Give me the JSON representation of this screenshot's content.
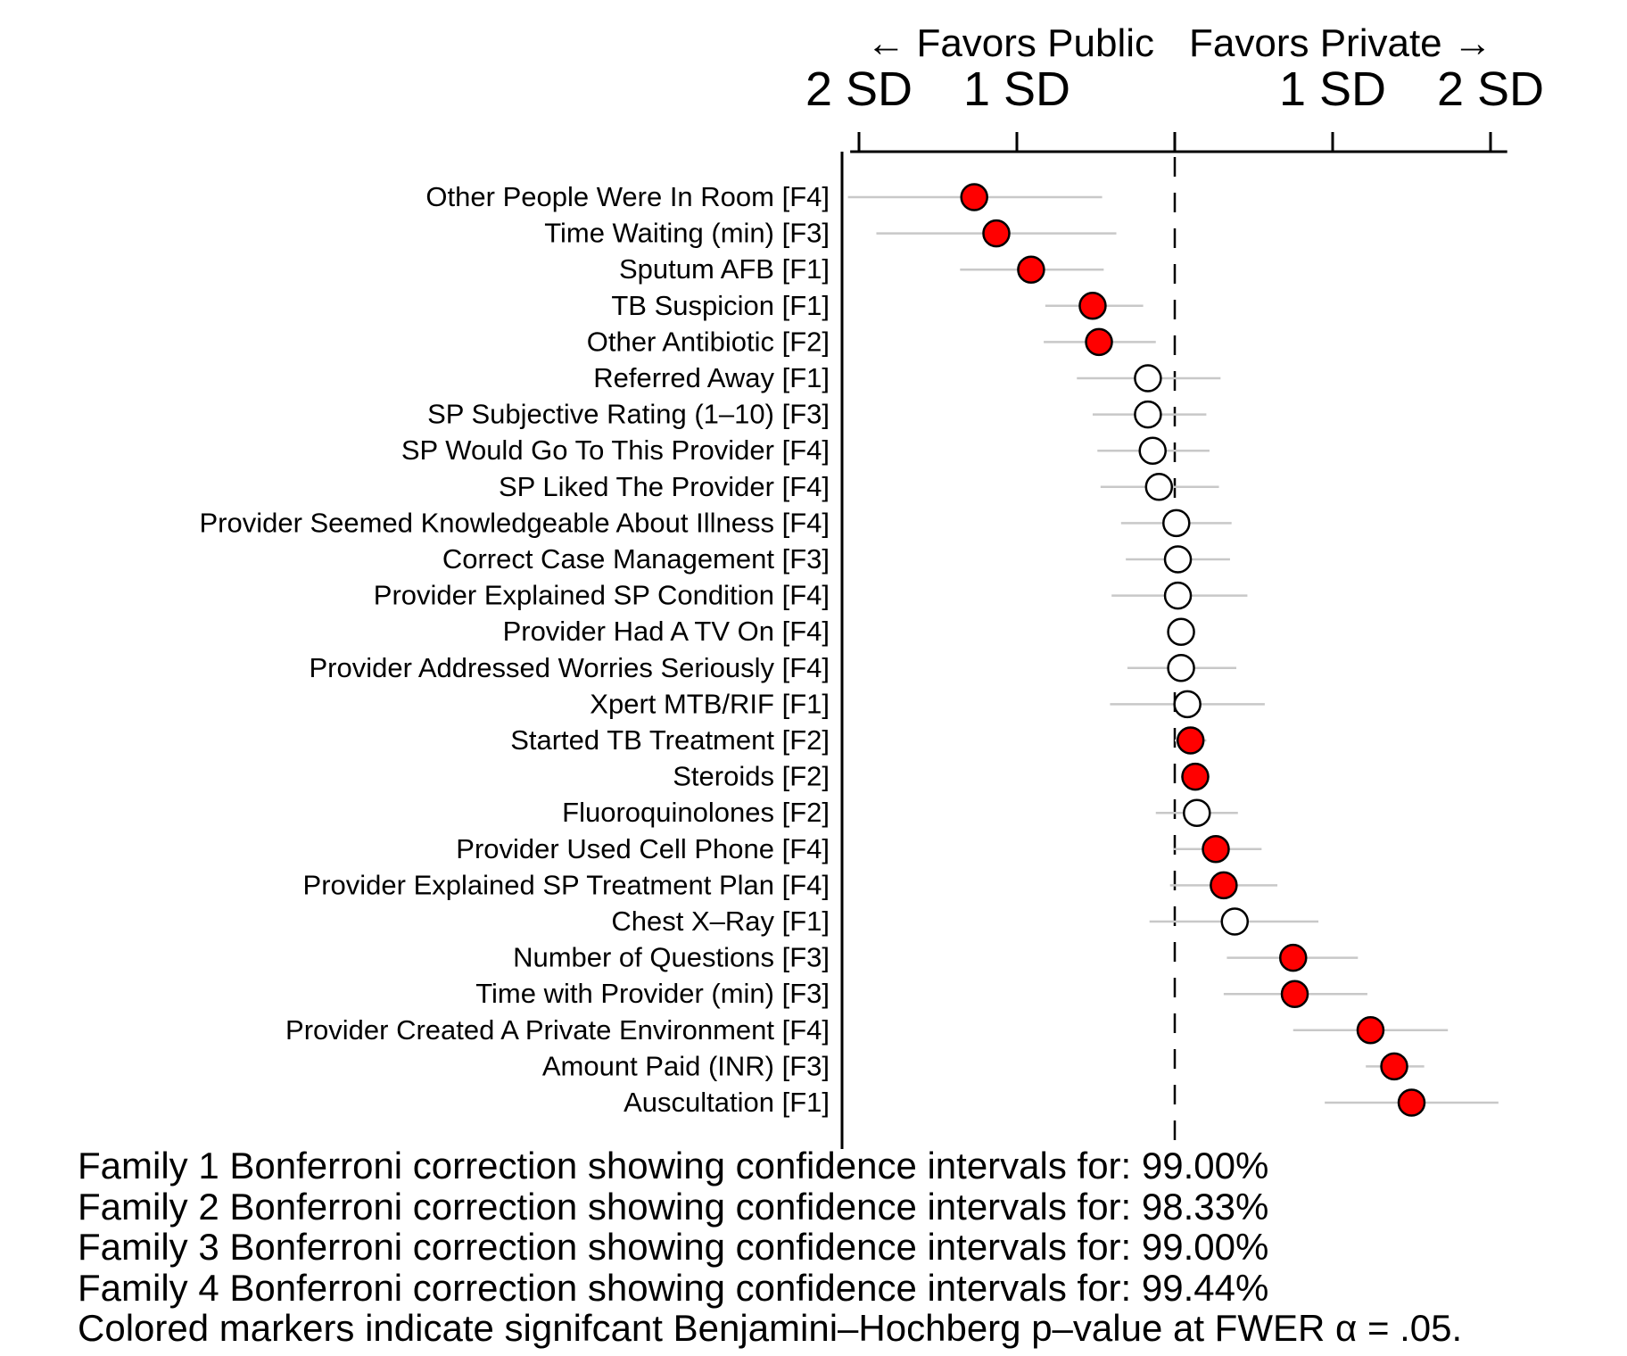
{
  "chart_data": {
    "type": "scatter",
    "subtype": "forest-plot",
    "direction_labels": {
      "left": "← Favors Public",
      "right": "Favors Private →"
    },
    "x_axis": {
      "units": "SD",
      "range": [
        -2.05,
        2.1
      ],
      "ticks": [
        {
          "value": -2,
          "label": "2 SD"
        },
        {
          "value": -1,
          "label": "1 SD"
        },
        {
          "value": 0,
          "label": ""
        },
        {
          "value": 1,
          "label": "1 SD"
        },
        {
          "value": 2,
          "label": "2 SD"
        }
      ],
      "reference_line": 0
    },
    "colors": {
      "significant": "#ff0000",
      "not_significant": "#ffffff",
      "ci": "#c8c8c8",
      "marker_edge": "#000000"
    },
    "rows": [
      {
        "label": "Other People Were In Room [F4]",
        "estimate": -1.27,
        "ci_low": -2.07,
        "ci_high": -0.46,
        "significant": true
      },
      {
        "label": "Time Waiting (min) [F3]",
        "estimate": -1.13,
        "ci_low": -1.89,
        "ci_high": -0.37,
        "significant": true
      },
      {
        "label": "Sputum AFB [F1]",
        "estimate": -0.91,
        "ci_low": -1.36,
        "ci_high": -0.45,
        "significant": true
      },
      {
        "label": "TB Suspicion [F1]",
        "estimate": -0.52,
        "ci_low": -0.82,
        "ci_high": -0.2,
        "significant": true
      },
      {
        "label": "Other Antibiotic [F2]",
        "estimate": -0.48,
        "ci_low": -0.83,
        "ci_high": -0.12,
        "significant": true
      },
      {
        "label": "Referred Away [F1]",
        "estimate": -0.17,
        "ci_low": -0.62,
        "ci_high": 0.29,
        "significant": false
      },
      {
        "label": "SP Subjective Rating (1–10) [F3]",
        "estimate": -0.17,
        "ci_low": -0.52,
        "ci_high": 0.2,
        "significant": false
      },
      {
        "label": "SP Would Go To This Provider [F4]",
        "estimate": -0.14,
        "ci_low": -0.49,
        "ci_high": 0.22,
        "significant": false
      },
      {
        "label": "SP Liked The Provider [F4]",
        "estimate": -0.1,
        "ci_low": -0.47,
        "ci_high": 0.28,
        "significant": false
      },
      {
        "label": "Provider Seemed Knowledgeable About Illness [F4]",
        "estimate": 0.01,
        "ci_low": -0.34,
        "ci_high": 0.36,
        "significant": false
      },
      {
        "label": "Correct Case Management [F3]",
        "estimate": 0.02,
        "ci_low": -0.31,
        "ci_high": 0.35,
        "significant": false
      },
      {
        "label": "Provider Explained SP Condition [F4]",
        "estimate": 0.02,
        "ci_low": -0.4,
        "ci_high": 0.46,
        "significant": false
      },
      {
        "label": "Provider Had A TV On [F4]",
        "estimate": 0.04,
        "ci_low": -0.02,
        "ci_high": 0.1,
        "significant": false
      },
      {
        "label": "Provider Addressed Worries Seriously [F4]",
        "estimate": 0.04,
        "ci_low": -0.3,
        "ci_high": 0.39,
        "significant": false
      },
      {
        "label": "Xpert MTB/RIF [F1]",
        "estimate": 0.08,
        "ci_low": -0.41,
        "ci_high": 0.57,
        "significant": false
      },
      {
        "label": "Started TB Treatment [F2]",
        "estimate": 0.1,
        "ci_low": 0.0,
        "ci_high": 0.2,
        "significant": true
      },
      {
        "label": "Steroids [F2]",
        "estimate": 0.13,
        "ci_low": 0.04,
        "ci_high": 0.22,
        "significant": true
      },
      {
        "label": "Fluoroquinolones [F2]",
        "estimate": 0.14,
        "ci_low": -0.12,
        "ci_high": 0.4,
        "significant": false
      },
      {
        "label": "Provider Used Cell Phone [F4]",
        "estimate": 0.26,
        "ci_low": -0.01,
        "ci_high": 0.55,
        "significant": true
      },
      {
        "label": "Provider Explained SP Treatment Plan [F4]",
        "estimate": 0.31,
        "ci_low": -0.03,
        "ci_high": 0.65,
        "significant": true
      },
      {
        "label": "Chest X–Ray [F1]",
        "estimate": 0.38,
        "ci_low": -0.16,
        "ci_high": 0.91,
        "significant": false
      },
      {
        "label": "Number of Questions [F3]",
        "estimate": 0.75,
        "ci_low": 0.33,
        "ci_high": 1.16,
        "significant": true
      },
      {
        "label": "Time with Provider (min) [F3]",
        "estimate": 0.76,
        "ci_low": 0.31,
        "ci_high": 1.22,
        "significant": true
      },
      {
        "label": "Provider Created A Private Environment [F4]",
        "estimate": 1.24,
        "ci_low": 0.75,
        "ci_high": 1.73,
        "significant": true
      },
      {
        "label": "Amount Paid (INR) [F3]",
        "estimate": 1.39,
        "ci_low": 1.21,
        "ci_high": 1.58,
        "significant": true
      },
      {
        "label": "Auscultation [F1]",
        "estimate": 1.5,
        "ci_low": 0.95,
        "ci_high": 2.05,
        "significant": true
      }
    ]
  },
  "footnotes": [
    "Family 1 Bonferroni correction showing confidence intervals for: 99.00%",
    "Family 2 Bonferroni correction showing confidence intervals for: 98.33%",
    "Family 3 Bonferroni correction showing confidence intervals for: 99.00%",
    "Family 4 Bonferroni correction showing confidence intervals for: 99.44%",
    "Colored markers indicate signifcant Benjamini–Hochberg p–value at FWER α = .05."
  ]
}
